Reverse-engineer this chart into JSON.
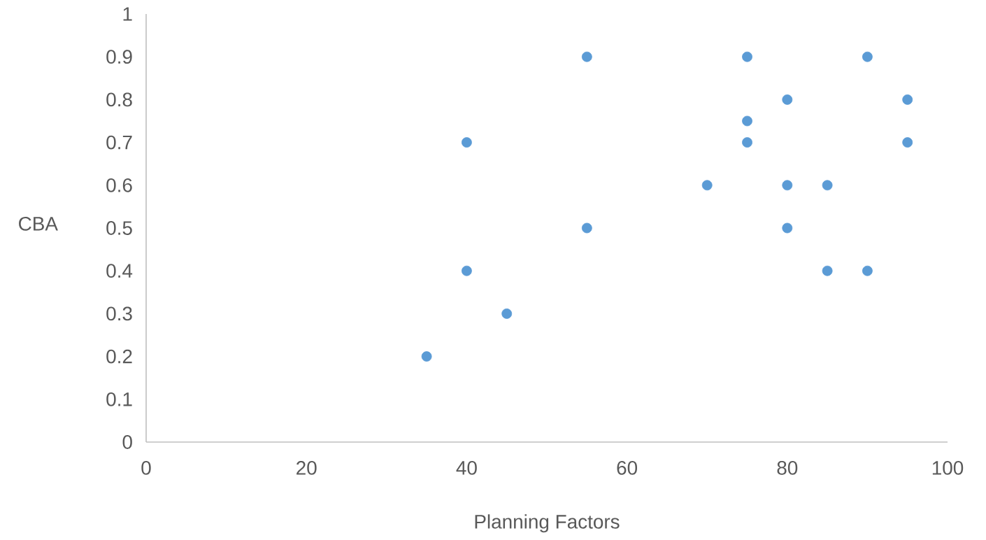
{
  "chart_data": {
    "type": "scatter",
    "xlabel": "Planning Factors",
    "ylabel": "CBA",
    "x": [
      35,
      40,
      40,
      45,
      55,
      55,
      70,
      75,
      75,
      75,
      80,
      80,
      80,
      85,
      85,
      90,
      90,
      95,
      95
    ],
    "values": [
      0.2,
      0.7,
      0.4,
      0.3,
      0.9,
      0.5,
      0.6,
      0.9,
      0.75,
      0.7,
      0.8,
      0.6,
      0.5,
      0.6,
      0.4,
      0.9,
      0.4,
      0.8,
      0.7
    ],
    "color": "#5b9bd5",
    "marker": "circle",
    "xlim": [
      0,
      100
    ],
    "xticks": [
      0,
      20,
      40,
      60,
      80,
      100
    ],
    "ylim": [
      0,
      1
    ],
    "yticks": [
      0,
      0.1,
      0.2,
      0.3,
      0.4,
      0.5,
      0.6,
      0.7,
      0.8,
      0.9,
      1
    ],
    "grid": false
  }
}
